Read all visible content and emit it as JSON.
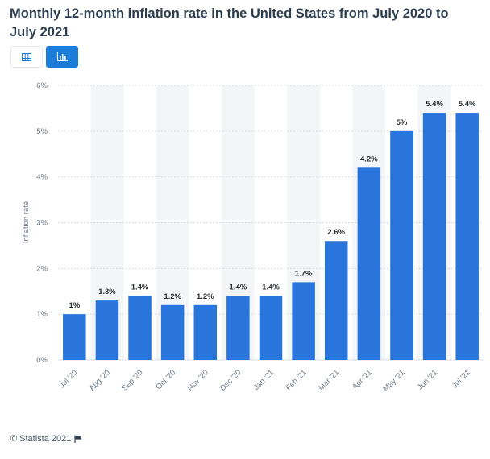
{
  "title": "Monthly 12-month inflation rate in the United States from July 2020 to July 2021",
  "toggles": {
    "table_icon": "table-icon",
    "chart_icon": "bar-chart-icon",
    "active": "chart"
  },
  "footer": {
    "copyright": "© Statista 2021",
    "flag_icon": "flag-icon"
  },
  "colors": {
    "bar": "#2a75db",
    "band": "#f4f5f6",
    "accent": "#1b7cd9"
  },
  "chart_data": {
    "type": "bar",
    "categories": [
      "Jul '20",
      "Aug '20",
      "Sep '20",
      "Oct '20",
      "Nov '20",
      "Dec '20",
      "Jan '21",
      "Feb '21",
      "Mar '21",
      "Apr '21",
      "May '21",
      "Jun '21",
      "Jul '21"
    ],
    "values": [
      1,
      1.3,
      1.4,
      1.2,
      1.2,
      1.4,
      1.4,
      1.7,
      2.6,
      4.2,
      5,
      5.4,
      5.4
    ],
    "value_labels": [
      "1%",
      "1.3%",
      "1.4%",
      "1.2%",
      "1.2%",
      "1.4%",
      "1.4%",
      "1.7%",
      "2.6%",
      "4.2%",
      "5%",
      "5.4%",
      "5.4%"
    ],
    "ylabel": "Inflation rate",
    "xlabel": "",
    "ylim": [
      0,
      6
    ],
    "yticks": [
      0,
      1,
      2,
      3,
      4,
      5,
      6
    ],
    "ytick_labels": [
      "0%",
      "1%",
      "2%",
      "3%",
      "4%",
      "5%",
      "6%"
    ],
    "grid": true,
    "alternating_bands": true
  }
}
